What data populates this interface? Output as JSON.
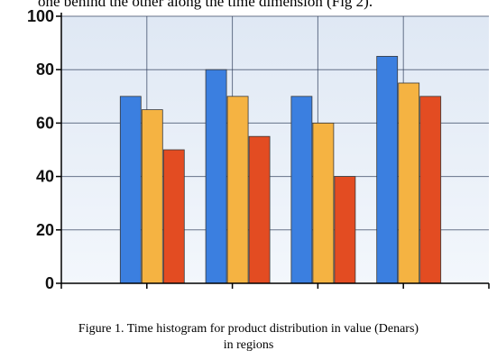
{
  "top_text": "one behind the other along the time dimension (Fig 2).",
  "caption": {
    "line1": "Figure 1.  Time histogram for product distribution in value (Denars)",
    "line2": "in regions"
  },
  "colors": {
    "series": [
      "#3b7fe0",
      "#f5b342",
      "#e34c22"
    ],
    "plot_bg_top": "#dfe8f4",
    "plot_bg_bottom": "#f3f7fc",
    "grid": "#2e3d5a",
    "axis": "#000000"
  },
  "chart_data": {
    "type": "bar",
    "title": "",
    "xlabel": "",
    "ylabel": "",
    "categories": [
      "",
      "",
      "",
      ""
    ],
    "series": [
      {
        "values": [
          70,
          80,
          70,
          85
        ]
      },
      {
        "values": [
          65,
          70,
          60,
          75
        ]
      },
      {
        "values": [
          50,
          55,
          40,
          70
        ]
      }
    ],
    "ylim": [
      0,
      100
    ],
    "yticks": [
      "0",
      "20",
      "40",
      "60",
      "80",
      "100"
    ],
    "grid": true,
    "legend": "none"
  }
}
